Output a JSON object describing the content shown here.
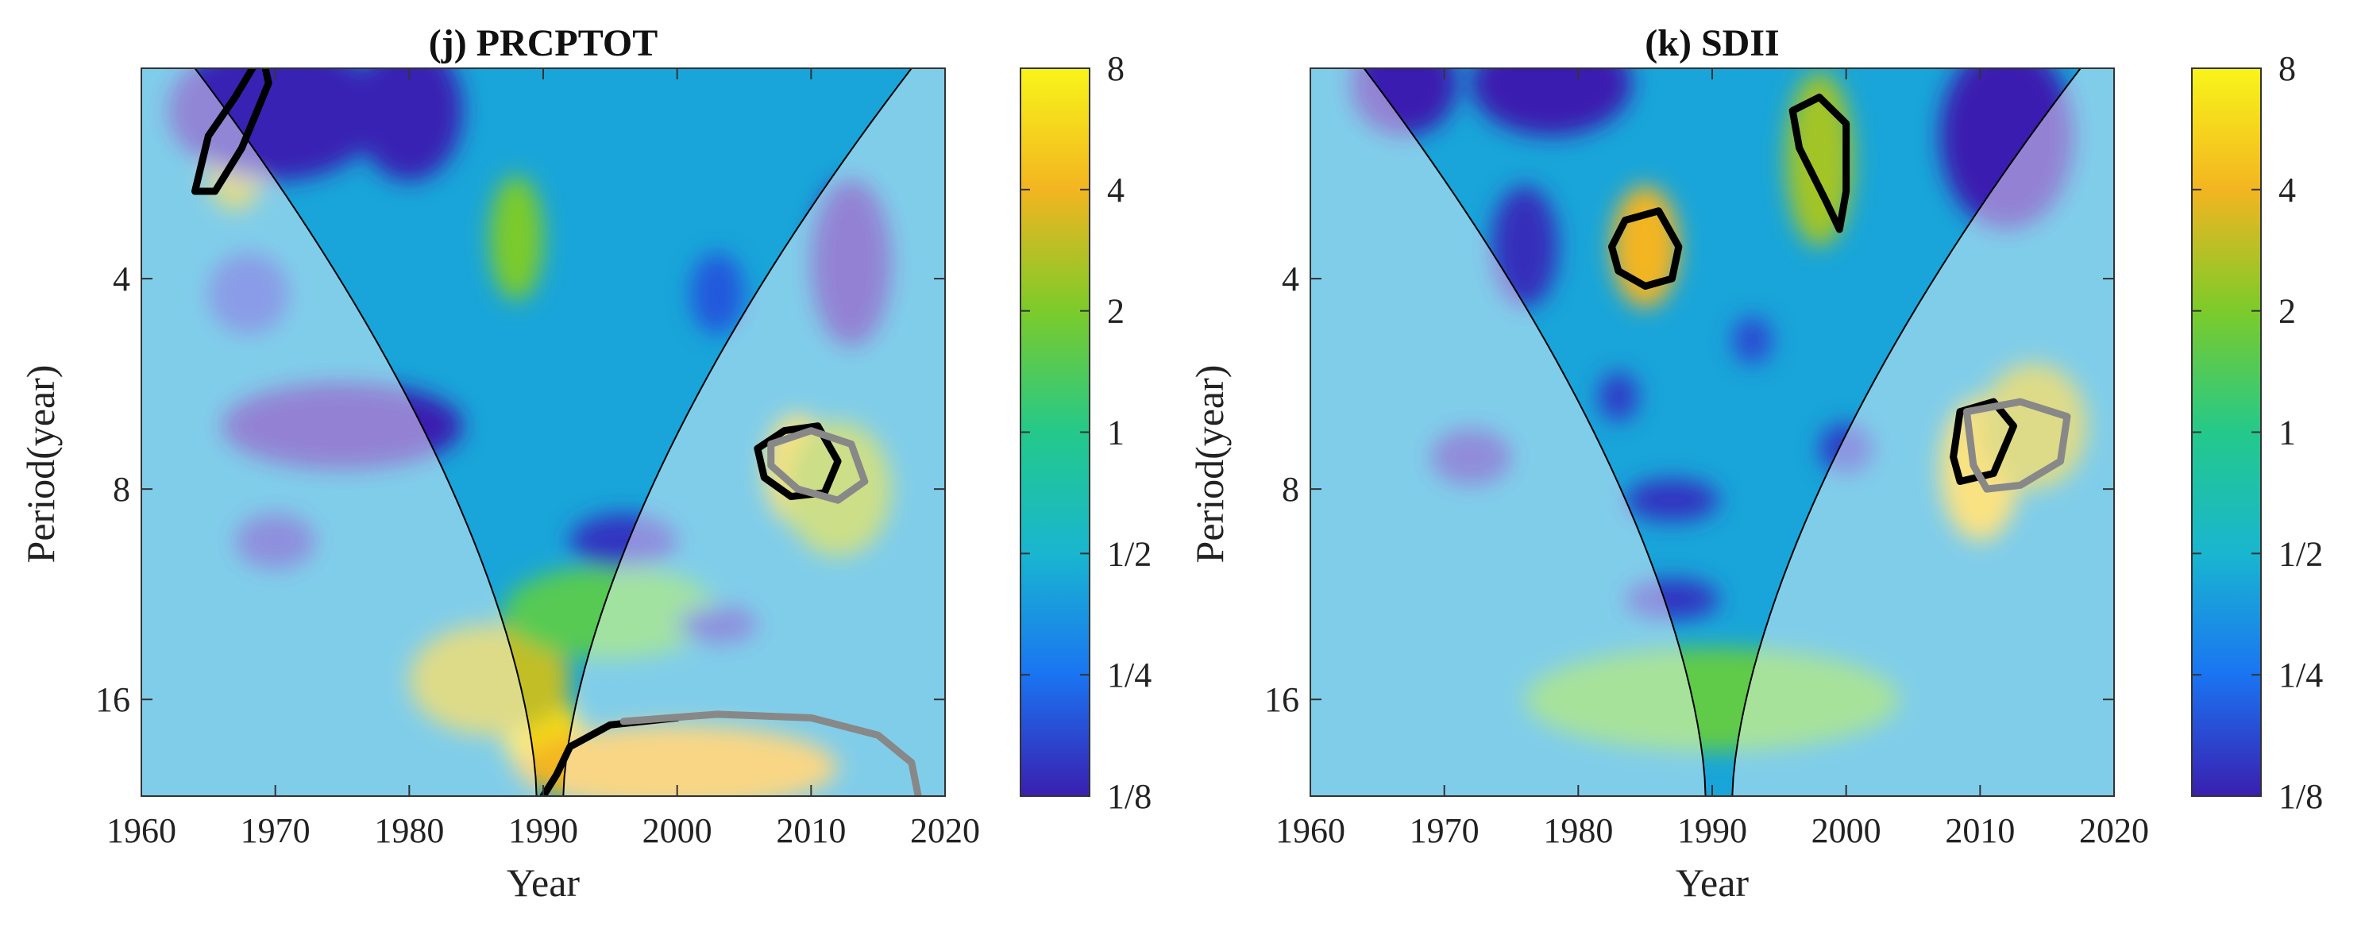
{
  "chart_data": [
    {
      "type": "heatmap",
      "subtype": "wavelet-power-spectrum",
      "title": "(j) PRCPTOT",
      "xlabel": "Year",
      "ylabel": "Period(year)",
      "xlim": [
        1960,
        2020
      ],
      "xticks": [
        1960,
        1970,
        1980,
        1990,
        2000,
        2010,
        2020
      ],
      "xtick_labels": [
        "1960",
        "1970",
        "1980",
        "1990",
        "2000",
        "2010",
        "2020"
      ],
      "ylim": [
        2,
        22
      ],
      "yscale": "log2",
      "yticks": [
        4,
        8,
        16
      ],
      "ytick_labels": [
        "4",
        "8",
        "16"
      ],
      "colorbar": {
        "scale": "log2",
        "ticks": [
          0.125,
          0.25,
          0.5,
          1,
          2,
          4,
          8
        ],
        "tick_labels": [
          "1/8",
          "1/4",
          "1/2",
          "1",
          "2",
          "4",
          "8"
        ],
        "colors": [
          "#3a1fb0",
          "#1a74f2",
          "#19b6d0",
          "#24c98a",
          "#7ccb2a",
          "#f3b521",
          "#f8f51a"
        ]
      },
      "cone_of_influence": {
        "min_year": 1990,
        "edge_width_years": 26,
        "comment": "parabolic cone boundary opening upward from ~1990 at bottom"
      },
      "power_blobs": [
        {
          "year": 1990,
          "period": 18,
          "power": 6,
          "spread_x": 3,
          "spread_y": 2.5
        },
        {
          "year": 1986,
          "period": 15,
          "power": 3,
          "spread_x": 6,
          "spread_y": 3
        },
        {
          "year": 2000,
          "period": 20,
          "power": 4,
          "spread_x": 12,
          "spread_y": 3
        },
        {
          "year": 2009,
          "period": 7.5,
          "power": 5,
          "spread_x": 2.5,
          "spread_y": 1.5
        },
        {
          "year": 2012,
          "period": 8,
          "power": 2.5,
          "spread_x": 4,
          "spread_y": 2
        },
        {
          "year": 1967,
          "period": 2.6,
          "power": 3,
          "spread_x": 2.5,
          "spread_y": 0.6
        },
        {
          "year": 1988,
          "period": 3.5,
          "power": 2,
          "spread_x": 2,
          "spread_y": 0.8
        },
        {
          "year": 1995,
          "period": 12,
          "power": 1.5,
          "spread_x": 8,
          "spread_y": 2
        },
        {
          "year": 1975,
          "period": 6.5,
          "power": 0.12,
          "spread_x": 9,
          "spread_y": 1
        },
        {
          "year": 1970,
          "period": 2.3,
          "power": 0.13,
          "spread_x": 8,
          "spread_y": 0.6
        },
        {
          "year": 1980,
          "period": 2.3,
          "power": 0.13,
          "spread_x": 4,
          "spread_y": 0.6
        },
        {
          "year": 2013,
          "period": 3.8,
          "power": 0.12,
          "spread_x": 3,
          "spread_y": 1.2
        },
        {
          "year": 1970,
          "period": 9.5,
          "power": 0.15,
          "spread_x": 3,
          "spread_y": 0.9
        },
        {
          "year": 1996,
          "period": 9.5,
          "power": 0.15,
          "spread_x": 4,
          "spread_y": 0.9
        },
        {
          "year": 2003,
          "period": 12.5,
          "power": 0.15,
          "spread_x": 3,
          "spread_y": 0.8
        },
        {
          "year": 1968,
          "period": 4.2,
          "power": 0.18,
          "spread_x": 3,
          "spread_y": 0.6
        },
        {
          "year": 2003,
          "period": 4.2,
          "power": 0.2,
          "spread_x": 2,
          "spread_y": 0.6
        }
      ],
      "significance_contours": [
        {
          "style": "black",
          "comment": "small loop near 1965-1968, period ~2.5"
        },
        {
          "style": "black",
          "comment": "loop around 2008-2011, period ~7.5"
        },
        {
          "style": "gray",
          "comment": "loop around 2008-2013, period ~7.5"
        },
        {
          "style": "black",
          "comment": "arc from 1990 near period ~20 bottom"
        },
        {
          "style": "gray",
          "comment": "large arc 1995-2018, period ~17-22"
        }
      ]
    },
    {
      "type": "heatmap",
      "subtype": "wavelet-power-spectrum",
      "title": "(k) SDII",
      "xlabel": "Year",
      "ylabel": "Period(year)",
      "xlim": [
        1960,
        2020
      ],
      "xticks": [
        1960,
        1970,
        1980,
        1990,
        2000,
        2010,
        2020
      ],
      "xtick_labels": [
        "1960",
        "1970",
        "1980",
        "1990",
        "2000",
        "2010",
        "2020"
      ],
      "ylim": [
        2,
        22
      ],
      "yscale": "log2",
      "yticks": [
        4,
        8,
        16
      ],
      "ytick_labels": [
        "4",
        "8",
        "16"
      ],
      "colorbar": {
        "scale": "log2",
        "ticks": [
          0.125,
          0.25,
          0.5,
          1,
          2,
          4,
          8
        ],
        "tick_labels": [
          "1/8",
          "1/4",
          "1/2",
          "1",
          "2",
          "4",
          "8"
        ],
        "colors": [
          "#3a1fb0",
          "#1a74f2",
          "#19b6d0",
          "#24c98a",
          "#7ccb2a",
          "#f3b521",
          "#f8f51a"
        ]
      },
      "cone_of_influence": {
        "min_year": 1990,
        "edge_width_years": 26,
        "comment": "parabolic cone boundary opening upward from ~1990 at bottom"
      },
      "power_blobs": [
        {
          "year": 1985,
          "period": 3.6,
          "power": 4,
          "spread_x": 2.5,
          "spread_y": 0.8
        },
        {
          "year": 1998,
          "period": 2.7,
          "power": 2.5,
          "spread_x": 2.5,
          "spread_y": 0.9
        },
        {
          "year": 2010,
          "period": 7.5,
          "power": 5,
          "spread_x": 3,
          "spread_y": 2
        },
        {
          "year": 2014,
          "period": 6.5,
          "power": 3,
          "spread_x": 4,
          "spread_y": 1.5
        },
        {
          "year": 1990,
          "period": 16,
          "power": 1.6,
          "spread_x": 14,
          "spread_y": 3
        },
        {
          "year": 1967,
          "period": 2.1,
          "power": 0.12,
          "spread_x": 4,
          "spread_y": 0.4
        },
        {
          "year": 1978,
          "period": 2.1,
          "power": 0.12,
          "spread_x": 6,
          "spread_y": 0.4
        },
        {
          "year": 2012,
          "period": 2.5,
          "power": 0.12,
          "spread_x": 5,
          "spread_y": 0.9
        },
        {
          "year": 1976,
          "period": 3.6,
          "power": 0.14,
          "spread_x": 2.5,
          "spread_y": 0.8
        },
        {
          "year": 1972,
          "period": 7.2,
          "power": 0.14,
          "spread_x": 3,
          "spread_y": 0.7
        },
        {
          "year": 1987,
          "period": 8.3,
          "power": 0.15,
          "spread_x": 3.5,
          "spread_y": 0.6
        },
        {
          "year": 1987,
          "period": 11.5,
          "power": 0.15,
          "spread_x": 3.5,
          "spread_y": 0.8
        },
        {
          "year": 1983,
          "period": 5.9,
          "power": 0.16,
          "spread_x": 1.5,
          "spread_y": 0.5
        },
        {
          "year": 2000,
          "period": 7,
          "power": 0.16,
          "spread_x": 2,
          "spread_y": 0.6
        },
        {
          "year": 1993,
          "period": 4.9,
          "power": 0.18,
          "spread_x": 1.5,
          "spread_y": 0.4
        }
      ],
      "significance_contours": [
        {
          "style": "black",
          "comment": "loop around 1982-1987, period ~3.6"
        },
        {
          "style": "black",
          "comment": "loop around 1996-2000, period ~2.4-3.3"
        },
        {
          "style": "black",
          "comment": "loop around 2008-2012, period ~7"
        },
        {
          "style": "gray",
          "comment": "loop around 2008-2017, period ~6-8"
        }
      ]
    }
  ]
}
